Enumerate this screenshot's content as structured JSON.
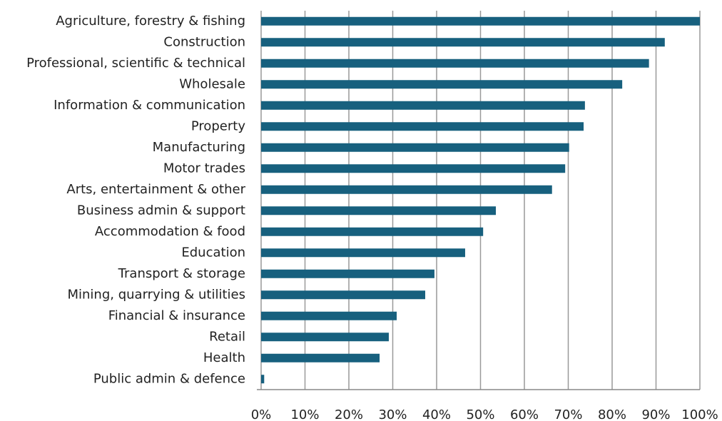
{
  "chart_data": {
    "type": "barh",
    "categories": [
      "Agriculture, forestry & fishing",
      "Construction",
      "Professional, scientific & technical",
      "Wholesale",
      "Information & communication",
      "Property",
      "Manufacturing",
      "Motor trades",
      "Arts, entertainment & other",
      "Business admin & support",
      "Accommodation & food",
      "Education",
      "Transport & storage",
      "Mining, quarrying & utilities",
      "Financial & insurance",
      "Retail",
      "Health",
      "Public admin & defence"
    ],
    "values": [
      100,
      92,
      88.4,
      82.3,
      73.8,
      73.5,
      70.2,
      69.3,
      66.3,
      53.5,
      50.6,
      46.5,
      39.5,
      37.4,
      30.9,
      29.1,
      27,
      0.7
    ],
    "color": "#17607e",
    "xlim": [
      0,
      100
    ],
    "xticks": [
      {
        "value": 0,
        "label": "0%"
      },
      {
        "value": 10,
        "label": "10%"
      },
      {
        "value": 20,
        "label": "20%"
      },
      {
        "value": 30,
        "label": "30%"
      },
      {
        "value": 40,
        "label": "40%"
      },
      {
        "value": 50,
        "label": "50%"
      },
      {
        "value": 60,
        "label": "60%"
      },
      {
        "value": 70,
        "label": "70%"
      },
      {
        "value": 80,
        "label": "80%"
      },
      {
        "value": 90,
        "label": "90%"
      },
      {
        "value": 100,
        "label": "100%"
      }
    ],
    "grid": true
  }
}
